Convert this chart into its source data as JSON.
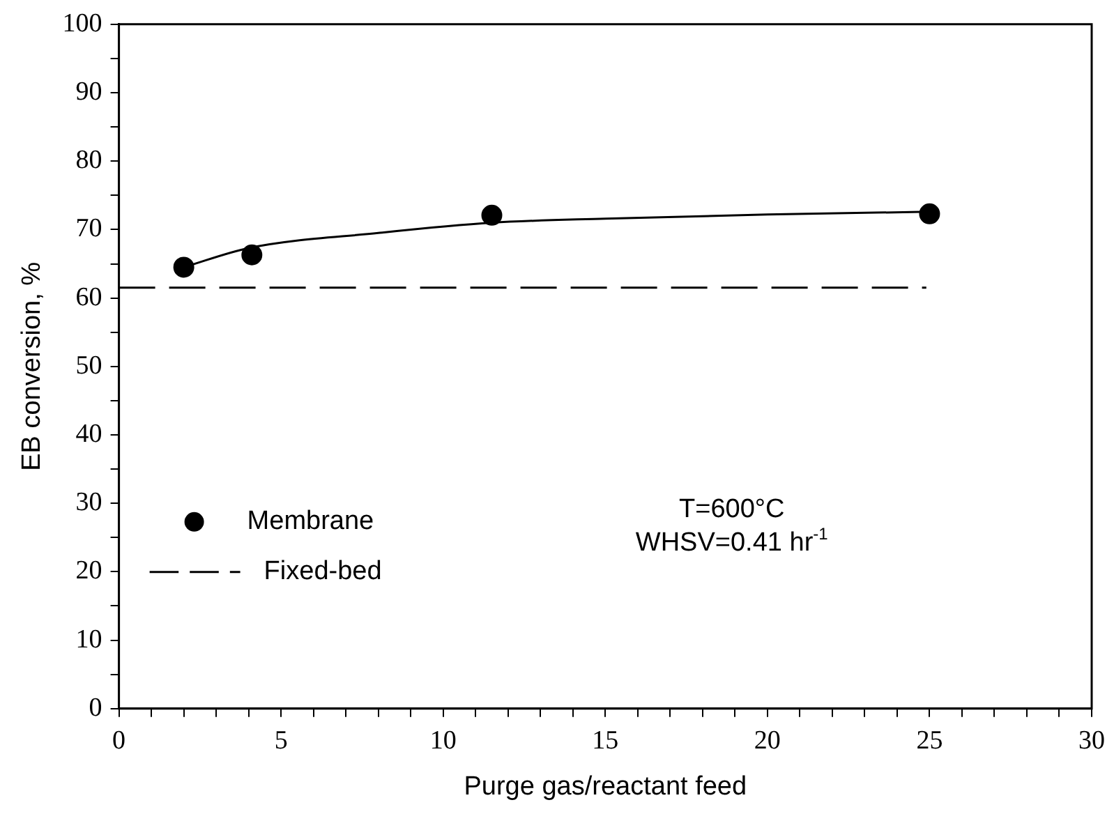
{
  "chart_data": {
    "type": "scatter",
    "xlabel": "Purge gas/reactant feed",
    "ylabel": "EB conversion, %",
    "xlim": [
      0,
      30
    ],
    "ylim": [
      0,
      100
    ],
    "xticks": [
      0,
      {
        "value": 1,
        "label": null
      },
      {
        "value": 2,
        "label": null
      },
      {
        "value": 3,
        "label": null
      },
      {
        "value": 4,
        "label": null
      },
      5,
      {
        "value": 6,
        "label": null
      },
      {
        "value": 7,
        "label": null
      },
      {
        "value": 8,
        "label": null
      },
      {
        "value": 9,
        "label": null
      },
      10,
      {
        "value": 11,
        "label": null
      },
      {
        "value": 12,
        "label": null
      },
      {
        "value": 13,
        "label": null
      },
      {
        "value": 14,
        "label": null
      },
      15,
      {
        "value": 16,
        "label": null
      },
      {
        "value": 17,
        "label": null
      },
      {
        "value": 18,
        "label": null
      },
      {
        "value": 19,
        "label": null
      },
      20,
      {
        "value": 21,
        "label": null
      },
      {
        "value": 22,
        "label": null
      },
      {
        "value": 23,
        "label": null
      },
      {
        "value": 24,
        "label": null
      },
      25,
      {
        "value": 26,
        "label": null
      },
      {
        "value": 27,
        "label": null
      },
      {
        "value": 28,
        "label": null
      },
      {
        "value": 29,
        "label": null
      },
      30
    ],
    "yticks": [
      0,
      {
        "value": 5,
        "label": null
      },
      10,
      {
        "value": 15,
        "label": null
      },
      20,
      {
        "value": 25,
        "label": null
      },
      30,
      {
        "value": 35,
        "label": null
      },
      40,
      {
        "value": 45,
        "label": null
      },
      50,
      {
        "value": 55,
        "label": null
      },
      60,
      {
        "value": 65,
        "label": null
      },
      70,
      {
        "value": 75,
        "label": null
      },
      80,
      {
        "value": 85,
        "label": null
      },
      90,
      {
        "value": 95,
        "label": null
      },
      100
    ],
    "grid": false,
    "legend": "bottom left",
    "series": [
      {
        "name": "Membrane",
        "type": "scatter",
        "marker": "circle",
        "color": "#000000",
        "x": [
          2,
          4.1,
          11.5,
          25
        ],
        "values": [
          64.5,
          66.3,
          72.1,
          72.3
        ]
      },
      {
        "type": "line",
        "marker": "none",
        "line_style": "solid",
        "color": "#000000",
        "x": [
          2,
          4,
          8,
          11.5,
          15,
          20,
          25
        ],
        "values": [
          64.5,
          67.3,
          69.5,
          71,
          71.6,
          72.2,
          72.6
        ]
      },
      {
        "name": "Fixed-bed",
        "type": "line",
        "marker": "none",
        "line_style": "dashed",
        "color": "#000000",
        "x": [
          0,
          24.9
        ],
        "values": [
          61.5,
          61.5
        ]
      }
    ],
    "annotations": [
      "T=600°C",
      "WHSV=0.41 hr$^{-1}$"
    ]
  }
}
